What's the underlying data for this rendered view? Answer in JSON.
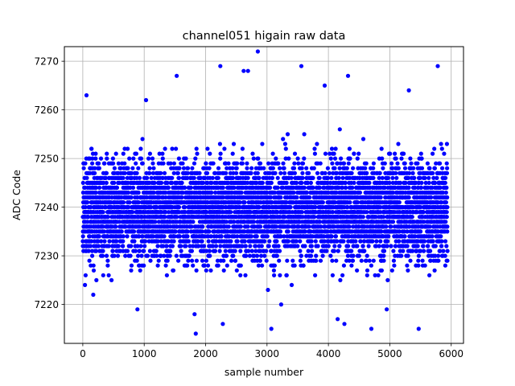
{
  "chart_data": {
    "type": "scatter",
    "title": "channel051 higain raw data",
    "xlabel": "sample number",
    "ylabel": "ADC Code",
    "xlim": [
      -300,
      6200
    ],
    "ylim": [
      7212,
      7273
    ],
    "xticks": [
      0,
      1000,
      2000,
      3000,
      4000,
      5000,
      6000
    ],
    "yticks": [
      7220,
      7230,
      7240,
      7250,
      7260,
      7270
    ],
    "grid": true,
    "marker_color": "#0000ff",
    "n_points": 5940,
    "series": [
      {
        "dense_band": [
          7232,
          7247
        ],
        "typical_spread": [
          7224,
          7258
        ],
        "outliers": [
          {
            "x": 60,
            "y": 7263
          },
          {
            "x": 1530,
            "y": 7267
          },
          {
            "x": 1820,
            "y": 7218
          },
          {
            "x": 1840,
            "y": 7214
          },
          {
            "x": 2240,
            "y": 7269
          },
          {
            "x": 2280,
            "y": 7216
          },
          {
            "x": 2620,
            "y": 7268
          },
          {
            "x": 2690,
            "y": 7268
          },
          {
            "x": 2850,
            "y": 7272
          },
          {
            "x": 3070,
            "y": 7215
          },
          {
            "x": 3230,
            "y": 7220
          },
          {
            "x": 3560,
            "y": 7269
          },
          {
            "x": 4150,
            "y": 7217
          },
          {
            "x": 4260,
            "y": 7216
          },
          {
            "x": 4320,
            "y": 7267
          },
          {
            "x": 4700,
            "y": 7215
          },
          {
            "x": 5470,
            "y": 7215
          },
          {
            "x": 5780,
            "y": 7269
          },
          {
            "x": 1030,
            "y": 7262
          },
          {
            "x": 3940,
            "y": 7265
          },
          {
            "x": 5310,
            "y": 7264
          },
          {
            "x": 890,
            "y": 7219
          },
          {
            "x": 170,
            "y": 7222
          },
          {
            "x": 4950,
            "y": 7219
          }
        ]
      }
    ]
  }
}
